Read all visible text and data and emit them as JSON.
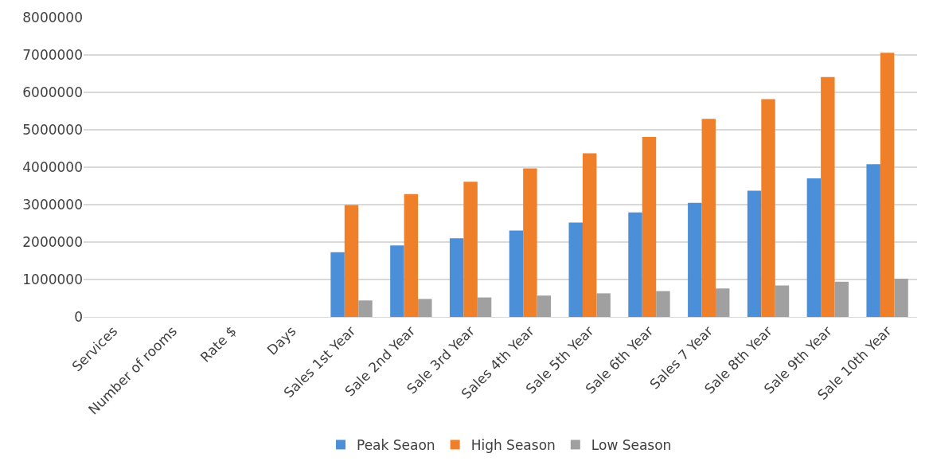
{
  "chart_data": {
    "type": "bar",
    "categories": [
      "Services",
      "Number of rooms",
      "Rate $",
      "Days",
      "Sales 1st Year",
      "Sale 2nd Year",
      "Sale 3rd Year",
      "Sales 4th Year",
      "Sale 5th Year",
      "Sale 6th Year",
      "Sales 7 Year",
      "Sale 8th Year",
      "Sale 9th Year",
      "Sale 10th Year"
    ],
    "series": [
      {
        "name": "Peak Seaon",
        "color": "#4a8fd8",
        "values": [
          null,
          null,
          null,
          null,
          1730000,
          1910000,
          2100000,
          2310000,
          2520000,
          2790000,
          3050000,
          3370000,
          3700000,
          4080000
        ]
      },
      {
        "name": "High Season",
        "color": "#f07f2a",
        "values": [
          null,
          null,
          null,
          null,
          2990000,
          3280000,
          3610000,
          3970000,
          4370000,
          4810000,
          5290000,
          5820000,
          6410000,
          7060000
        ]
      },
      {
        "name": "Low Season",
        "color": "#a0a0a0",
        "values": [
          null,
          null,
          null,
          null,
          440000,
          480000,
          520000,
          570000,
          630000,
          690000,
          760000,
          840000,
          940000,
          1020000
        ]
      }
    ],
    "ylim": [
      0,
      8000000
    ],
    "yticks": [
      0,
      1000000,
      2000000,
      3000000,
      4000000,
      5000000,
      6000000,
      7000000,
      8000000
    ],
    "grid": "y",
    "legend": "bottom"
  }
}
